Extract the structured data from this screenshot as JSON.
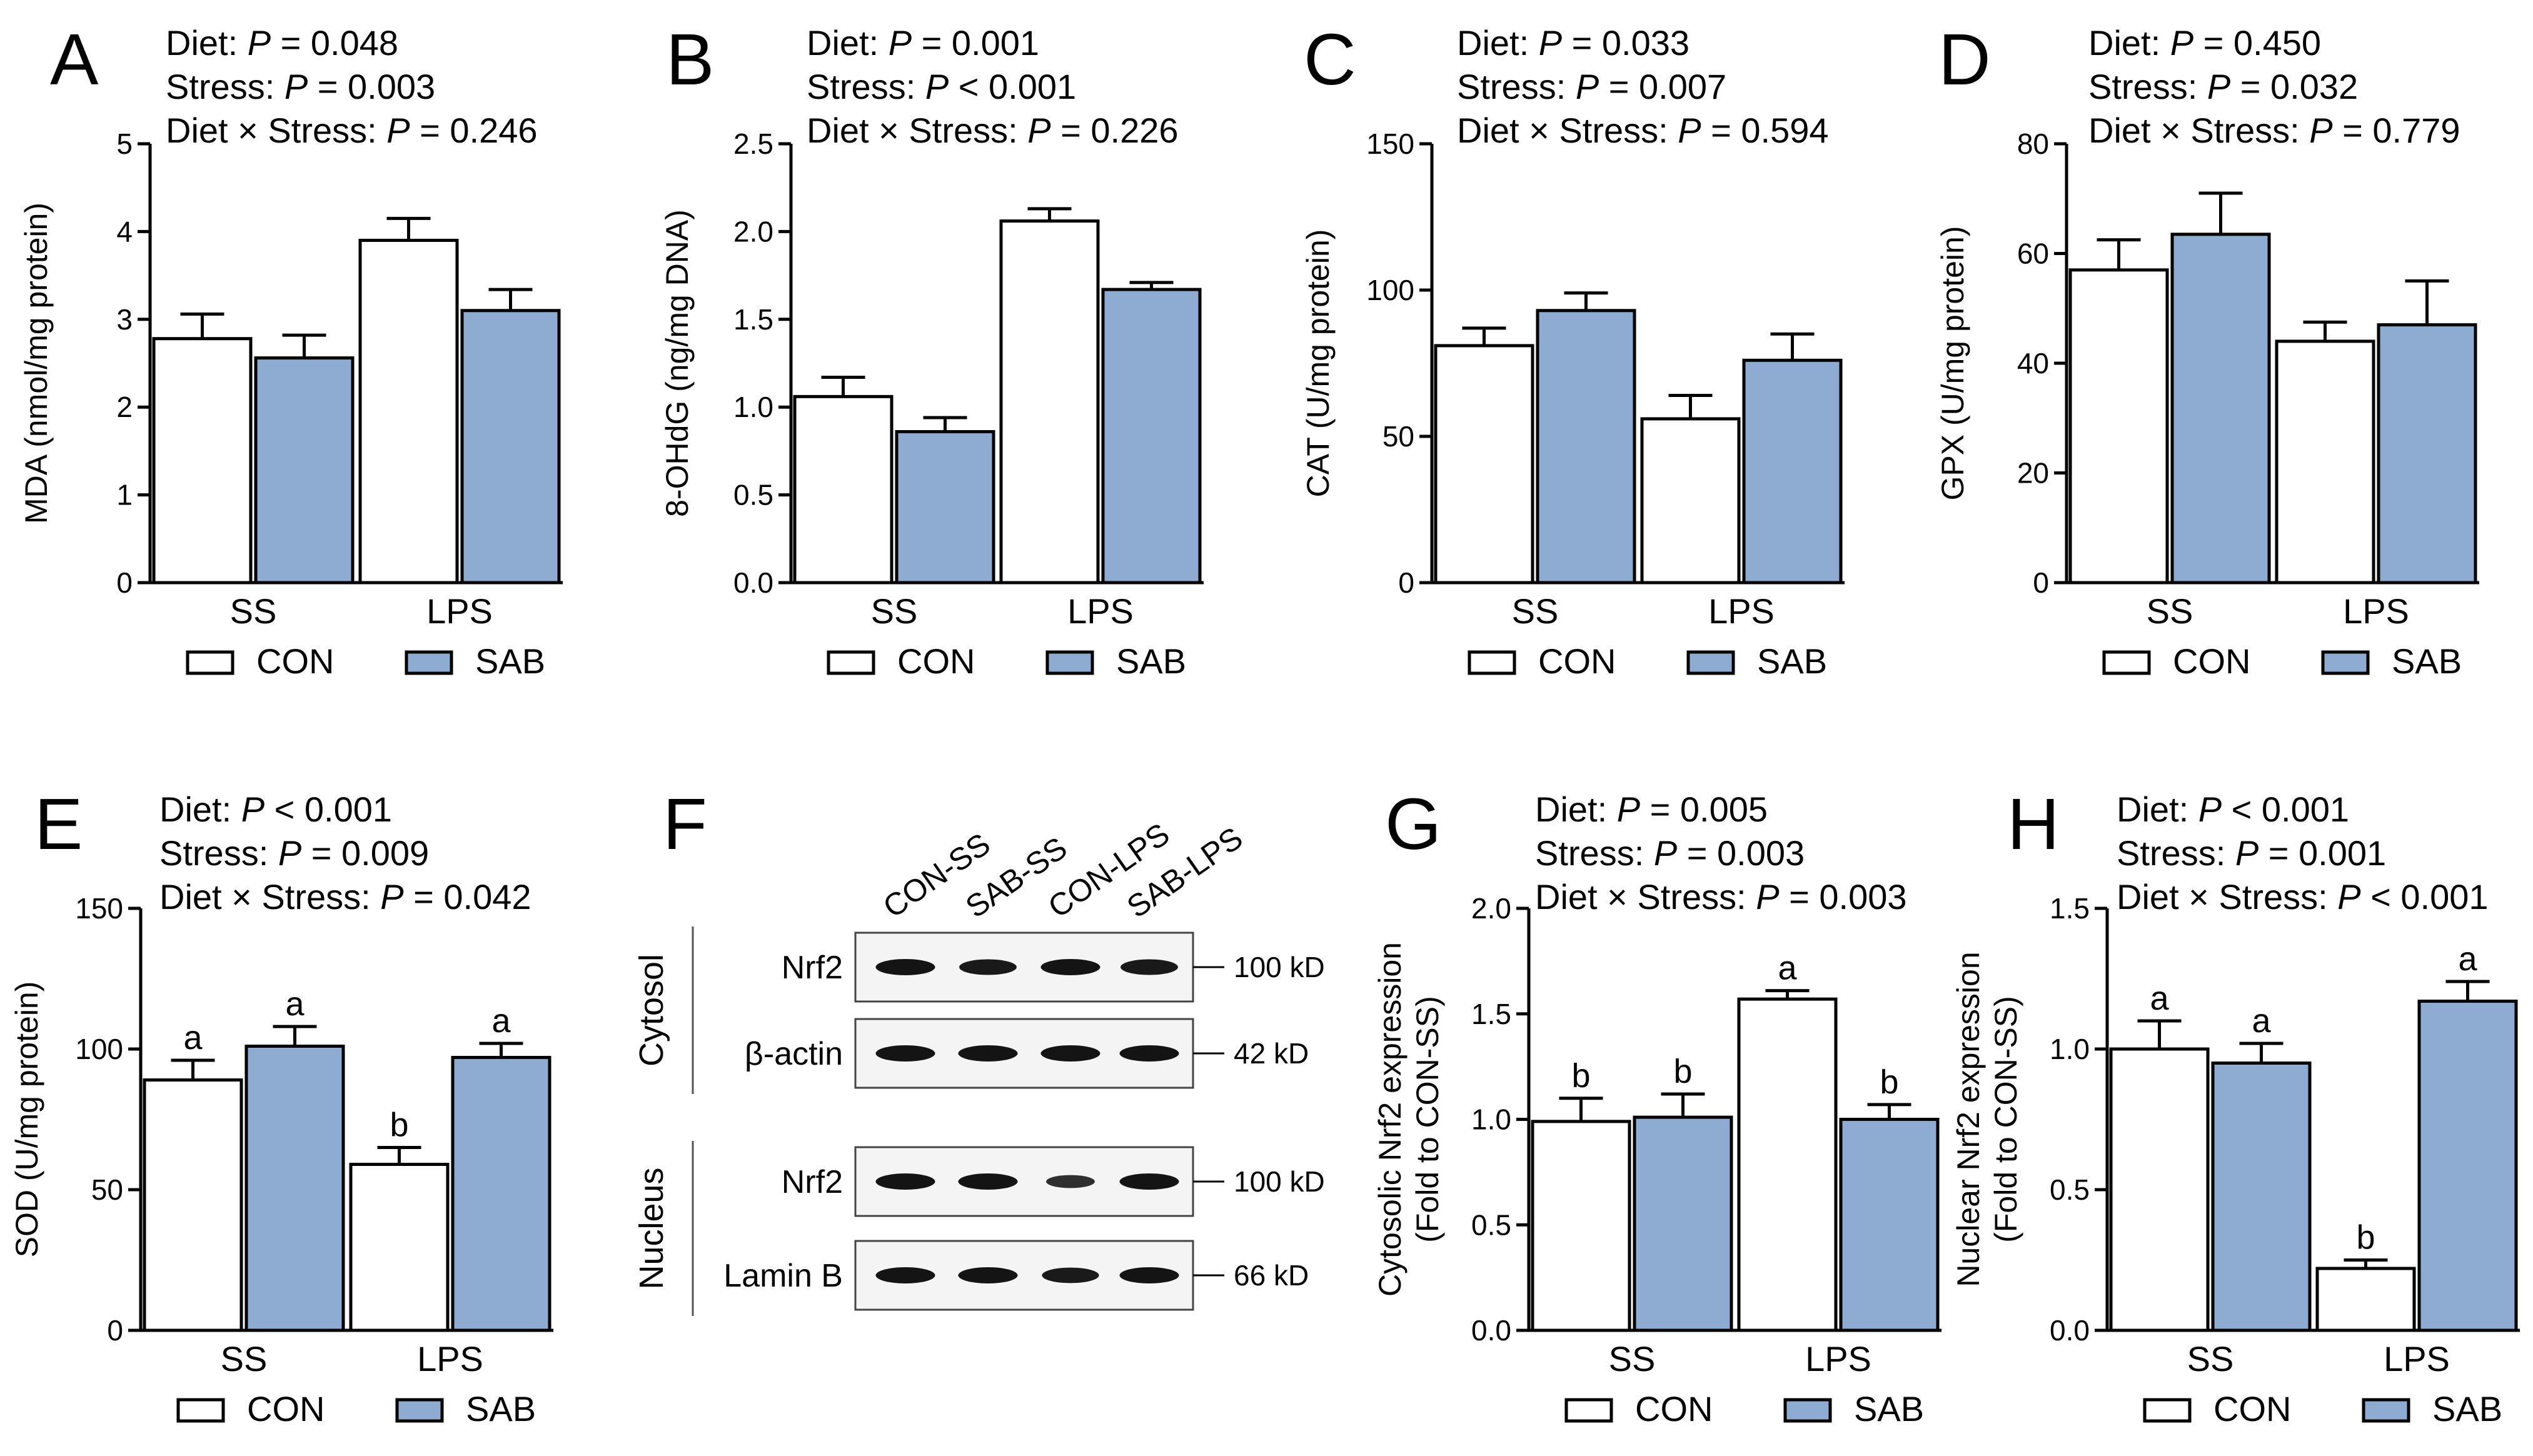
{
  "colors": {
    "con": "#ffffff",
    "sab": "#8eabd2",
    "stroke": "#000000"
  },
  "legend": {
    "con": "CON",
    "sab": "SAB"
  },
  "chart_data": [
    {
      "id": "A",
      "letter": "A",
      "type": "bar",
      "stats": [
        {
          "label": "Diet: ",
          "p": "P",
          "rest": " = 0.048"
        },
        {
          "label": "Stress: ",
          "p": "P",
          "rest": " = 0.003"
        },
        {
          "label": "Diet × Stress: ",
          "p": "P",
          "rest": " = 0.246"
        }
      ],
      "ylabel": [
        "MDA (nmol/mg protein)"
      ],
      "ylim": [
        0,
        5
      ],
      "yticks": [
        "0",
        "1",
        "2",
        "3",
        "4",
        "5"
      ],
      "categories": [
        "SS",
        "LPS"
      ],
      "series": [
        {
          "name": "CON",
          "values": [
            2.78,
            3.9
          ],
          "errors": [
            0.28,
            0.25
          ],
          "labels": [
            "",
            ""
          ]
        },
        {
          "name": "SAB",
          "values": [
            2.56,
            3.1
          ],
          "errors": [
            0.26,
            0.24
          ],
          "labels": [
            "",
            ""
          ]
        }
      ]
    },
    {
      "id": "B",
      "letter": "B",
      "type": "bar",
      "stats": [
        {
          "label": "Diet: ",
          "p": "P",
          "rest": " = 0.001"
        },
        {
          "label": "Stress: ",
          "p": "P",
          "rest": " < 0.001"
        },
        {
          "label": "Diet × Stress: ",
          "p": "P",
          "rest": " = 0.226"
        }
      ],
      "ylabel": [
        "8-OHdG (ng/mg DNA)"
      ],
      "ylim": [
        0,
        2.5
      ],
      "yticks": [
        "0.0",
        "0.5",
        "1.0",
        "1.5",
        "2.0",
        "2.5"
      ],
      "categories": [
        "SS",
        "LPS"
      ],
      "series": [
        {
          "name": "CON",
          "values": [
            1.06,
            2.06
          ],
          "errors": [
            0.11,
            0.07
          ],
          "labels": [
            "",
            ""
          ]
        },
        {
          "name": "SAB",
          "values": [
            0.86,
            1.67
          ],
          "errors": [
            0.08,
            0.04
          ],
          "labels": [
            "",
            ""
          ]
        }
      ]
    },
    {
      "id": "C",
      "letter": "C",
      "type": "bar",
      "stats": [
        {
          "label": "Diet: ",
          "p": "P",
          "rest": " = 0.033"
        },
        {
          "label": "Stress: ",
          "p": "P",
          "rest": " = 0.007"
        },
        {
          "label": "Diet × Stress: ",
          "p": "P",
          "rest": " = 0.594"
        }
      ],
      "ylabel": [
        "CAT (U/mg protein)"
      ],
      "ylim": [
        0,
        150
      ],
      "yticks": [
        "0",
        "50",
        "100",
        "150"
      ],
      "categories": [
        "SS",
        "LPS"
      ],
      "series": [
        {
          "name": "CON",
          "values": [
            81,
            56
          ],
          "errors": [
            6,
            8
          ],
          "labels": [
            "",
            ""
          ]
        },
        {
          "name": "SAB",
          "values": [
            93,
            76
          ],
          "errors": [
            6,
            9
          ],
          "labels": [
            "",
            ""
          ]
        }
      ]
    },
    {
      "id": "D",
      "letter": "D",
      "type": "bar",
      "stats": [
        {
          "label": "Diet: ",
          "p": "P",
          "rest": " = 0.450"
        },
        {
          "label": "Stress: ",
          "p": "P",
          "rest": " = 0.032"
        },
        {
          "label": "Diet × Stress: ",
          "p": "P",
          "rest": " = 0.779"
        }
      ],
      "ylabel": [
        "GPX (U/mg protein)"
      ],
      "ylim": [
        0,
        80
      ],
      "yticks": [
        "0",
        "20",
        "40",
        "60",
        "80"
      ],
      "categories": [
        "SS",
        "LPS"
      ],
      "series": [
        {
          "name": "CON",
          "values": [
            57,
            44
          ],
          "errors": [
            5.5,
            3.5
          ],
          "labels": [
            "",
            ""
          ]
        },
        {
          "name": "SAB",
          "values": [
            63.5,
            47
          ],
          "errors": [
            7.5,
            8
          ],
          "labels": [
            "",
            ""
          ]
        }
      ]
    },
    {
      "id": "E",
      "letter": "E",
      "type": "bar",
      "stats": [
        {
          "label": "Diet: ",
          "p": "P",
          "rest": " < 0.001"
        },
        {
          "label": "Stress: ",
          "p": "P",
          "rest": " = 0.009"
        },
        {
          "label": "Diet × Stress: ",
          "p": "P",
          "rest": " = 0.042"
        }
      ],
      "ylabel": [
        "SOD (U/mg protein)"
      ],
      "ylim": [
        0,
        150
      ],
      "yticks": [
        "0",
        "50",
        "100",
        "150"
      ],
      "categories": [
        "SS",
        "LPS"
      ],
      "series": [
        {
          "name": "CON",
          "values": [
            89,
            59
          ],
          "errors": [
            7,
            6
          ],
          "labels": [
            "a",
            "b"
          ]
        },
        {
          "name": "SAB",
          "values": [
            101,
            97
          ],
          "errors": [
            7,
            5
          ],
          "labels": [
            "a",
            "a"
          ]
        }
      ]
    },
    {
      "id": "G",
      "letter": "G",
      "type": "bar",
      "stats": [
        {
          "label": "Diet: ",
          "p": "P",
          "rest": " = 0.005"
        },
        {
          "label": "Stress: ",
          "p": "P",
          "rest": " = 0.003"
        },
        {
          "label": "Diet × Stress: ",
          "p": "P",
          "rest": " = 0.003"
        }
      ],
      "ylabel": [
        "Cytosolic Nrf2 expression",
        "(Fold to CON-SS)"
      ],
      "ylim": [
        0,
        2.0
      ],
      "yticks": [
        "0.0",
        "0.5",
        "1.0",
        "1.5",
        "2.0"
      ],
      "categories": [
        "SS",
        "LPS"
      ],
      "series": [
        {
          "name": "CON",
          "values": [
            0.99,
            1.57
          ],
          "errors": [
            0.11,
            0.04
          ],
          "labels": [
            "b",
            "a"
          ]
        },
        {
          "name": "SAB",
          "values": [
            1.01,
            1.0
          ],
          "errors": [
            0.11,
            0.07
          ],
          "labels": [
            "b",
            "b"
          ]
        }
      ]
    },
    {
      "id": "H",
      "letter": "H",
      "type": "bar",
      "stats": [
        {
          "label": "Diet: ",
          "p": "P",
          "rest": " < 0.001"
        },
        {
          "label": "Stress: ",
          "p": "P",
          "rest": " = 0.001"
        },
        {
          "label": "Diet × Stress: ",
          "p": "P",
          "rest": " < 0.001"
        }
      ],
      "ylabel": [
        "Nuclear Nrf2 expression",
        "(Fold to CON-SS)"
      ],
      "ylim": [
        0,
        1.5
      ],
      "yticks": [
        "0.0",
        "0.5",
        "1.0",
        "1.5"
      ],
      "categories": [
        "SS",
        "LPS"
      ],
      "series": [
        {
          "name": "CON",
          "values": [
            1.0,
            0.22
          ],
          "errors": [
            0.1,
            0.03
          ],
          "labels": [
            "a",
            "b"
          ]
        },
        {
          "name": "SAB",
          "values": [
            0.95,
            1.17
          ],
          "errors": [
            0.07,
            0.07
          ],
          "labels": [
            "a",
            "a"
          ]
        }
      ]
    }
  ],
  "western_blot": {
    "letter": "F",
    "lanes": [
      "CON-SS",
      "SAB-SS",
      "CON-LPS",
      "SAB-LPS"
    ],
    "groups": [
      {
        "name": "Cytosol",
        "rows": [
          {
            "protein": "Nrf2",
            "kd": "100 kD",
            "intensity": [
              1.0,
              0.92,
              1.0,
              0.92
            ]
          },
          {
            "protein": "β-actin",
            "kd": "42 kD",
            "intensity": [
              1.0,
              1.0,
              1.0,
              1.0
            ]
          }
        ]
      },
      {
        "name": "Nucleus",
        "rows": [
          {
            "protein": "Nrf2",
            "kd": "100 kD",
            "intensity": [
              1.0,
              1.0,
              0.55,
              1.0
            ]
          },
          {
            "protein": "Lamin B",
            "kd": "66 kD",
            "intensity": [
              1.0,
              1.0,
              0.9,
              1.0
            ]
          }
        ]
      }
    ]
  }
}
